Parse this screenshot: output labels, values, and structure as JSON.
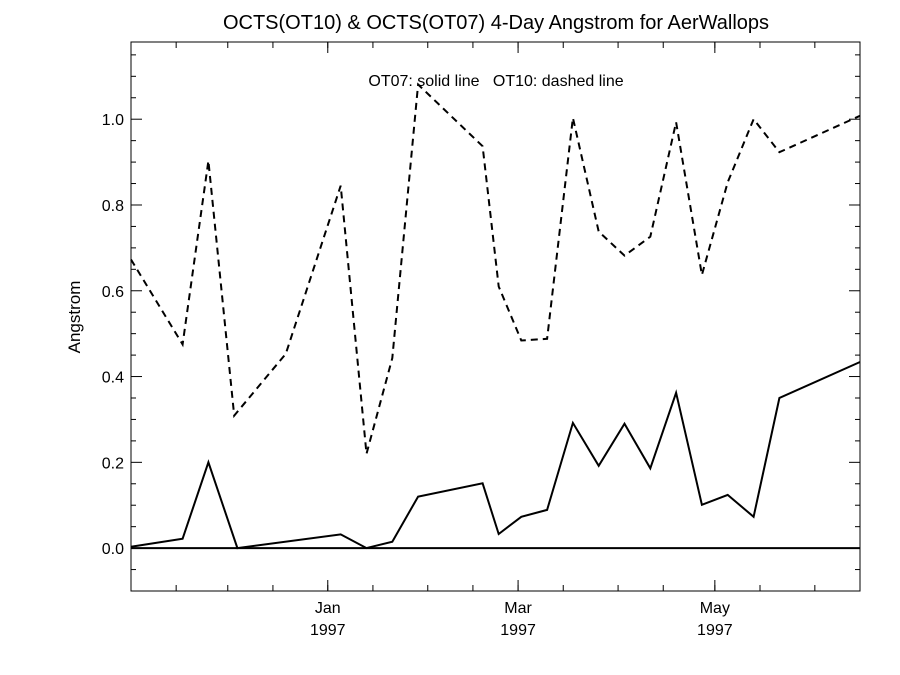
{
  "chart_data": {
    "type": "line",
    "title": "OCTS(OT10) & OCTS(OT07) 4-Day Angstrom for AerWallops",
    "xlabel": "",
    "ylabel": "Angstrom",
    "annotation": "OT07: solid line   OT10: dashed line",
    "xlim": [
      "1996-11-01",
      "1997-06-15"
    ],
    "ylim": [
      -0.1,
      1.18
    ],
    "y_ticks": [
      0.0,
      0.2,
      0.4,
      0.6,
      0.8,
      1.0
    ],
    "x_ticks": [
      {
        "date": "1997-01-01",
        "label": "Jan",
        "year": "1997"
      },
      {
        "date": "1997-03-01",
        "label": "Mar",
        "year": "1997"
      },
      {
        "date": "1997-05-01",
        "label": "May",
        "year": "1997"
      }
    ],
    "reference_line": 0.0,
    "series": [
      {
        "name": "OT07",
        "style": "solid",
        "color": "#000000",
        "points": [
          {
            "x": "1996-11-01",
            "y": 0.003
          },
          {
            "x": "1996-11-17",
            "y": 0.022
          },
          {
            "x": "1996-11-25",
            "y": 0.2
          },
          {
            "x": "1996-12-04",
            "y": 0.0
          },
          {
            "x": "1997-01-05",
            "y": 0.032
          },
          {
            "x": "1997-01-13",
            "y": 0.0
          },
          {
            "x": "1997-01-21",
            "y": 0.015
          },
          {
            "x": "1997-01-29",
            "y": 0.12
          },
          {
            "x": "1997-02-18",
            "y": 0.151
          },
          {
            "x": "1997-02-23",
            "y": 0.033
          },
          {
            "x": "1997-03-02",
            "y": 0.073
          },
          {
            "x": "1997-03-10",
            "y": 0.089
          },
          {
            "x": "1997-03-18",
            "y": 0.292
          },
          {
            "x": "1997-03-26",
            "y": 0.192
          },
          {
            "x": "1997-04-03",
            "y": 0.29
          },
          {
            "x": "1997-04-11",
            "y": 0.186
          },
          {
            "x": "1997-04-19",
            "y": 0.362
          },
          {
            "x": "1997-04-27",
            "y": 0.101
          },
          {
            "x": "1997-05-05",
            "y": 0.124
          },
          {
            "x": "1997-05-13",
            "y": 0.073
          },
          {
            "x": "1997-05-21",
            "y": 0.35
          },
          {
            "x": "1997-06-15",
            "y": 0.434
          }
        ]
      },
      {
        "name": "OT10",
        "style": "dashed",
        "color": "#000000",
        "points": [
          {
            "x": "1996-11-01",
            "y": 0.673
          },
          {
            "x": "1996-11-17",
            "y": 0.475
          },
          {
            "x": "1996-11-25",
            "y": 0.903
          },
          {
            "x": "1996-12-03",
            "y": 0.309
          },
          {
            "x": "1996-12-19",
            "y": 0.453
          },
          {
            "x": "1997-01-05",
            "y": 0.845
          },
          {
            "x": "1997-01-13",
            "y": 0.22
          },
          {
            "x": "1997-01-21",
            "y": 0.443
          },
          {
            "x": "1997-01-29",
            "y": 1.081
          },
          {
            "x": "1997-02-18",
            "y": 0.937
          },
          {
            "x": "1997-02-23",
            "y": 0.61
          },
          {
            "x": "1997-03-02",
            "y": 0.484
          },
          {
            "x": "1997-03-10",
            "y": 0.488
          },
          {
            "x": "1997-03-18",
            "y": 1.003
          },
          {
            "x": "1997-03-26",
            "y": 0.738
          },
          {
            "x": "1997-04-03",
            "y": 0.682
          },
          {
            "x": "1997-04-11",
            "y": 0.726
          },
          {
            "x": "1997-04-19",
            "y": 0.993
          },
          {
            "x": "1997-04-27",
            "y": 0.637
          },
          {
            "x": "1997-05-05",
            "y": 0.853
          },
          {
            "x": "1997-05-13",
            "y": 1.0
          },
          {
            "x": "1997-05-21",
            "y": 0.923
          },
          {
            "x": "1997-06-15",
            "y": 1.008
          }
        ]
      }
    ]
  }
}
